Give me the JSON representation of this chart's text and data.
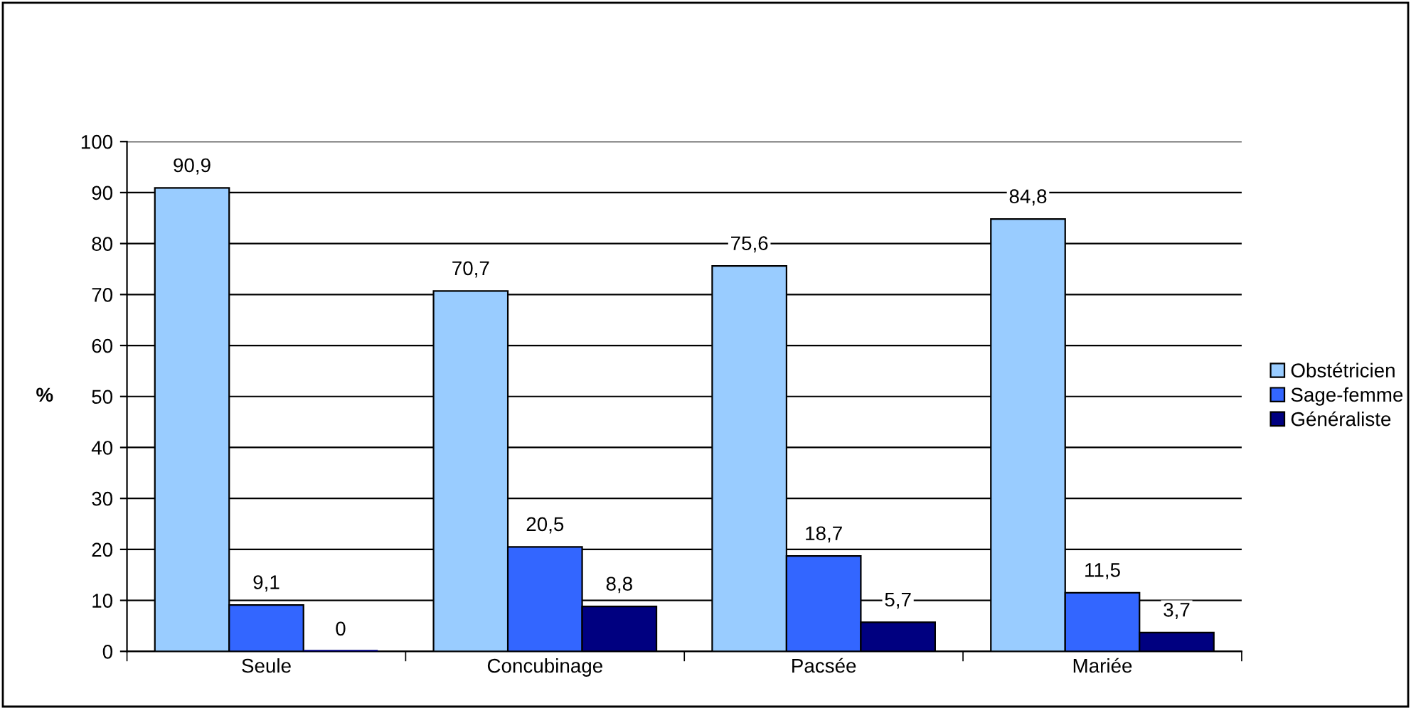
{
  "chart_data": {
    "type": "bar",
    "ylabel": "%",
    "categories": [
      "Seule",
      "Concubinage",
      "Pacsée",
      "Mariée"
    ],
    "series": [
      {
        "name": "Obstétricien",
        "color": "#99ccff",
        "values": [
          90.9,
          70.7,
          75.6,
          84.8
        ],
        "value_labels": [
          "90,9",
          "70,7",
          "75,6",
          "84,8"
        ]
      },
      {
        "name": "Sage-femme",
        "color": "#3366ff",
        "values": [
          9.1,
          20.5,
          18.7,
          11.5
        ],
        "value_labels": [
          "9,1",
          "20,5",
          "18,7",
          "11,5"
        ]
      },
      {
        "name": "Généraliste",
        "color": "#000080",
        "values": [
          0,
          8.8,
          5.7,
          3.7
        ],
        "value_labels": [
          "0",
          "8,8",
          "5,7",
          "3,7"
        ]
      }
    ],
    "ylim": [
      0,
      100
    ],
    "yticks": [
      0,
      10,
      20,
      30,
      40,
      50,
      60,
      70,
      80,
      90,
      100
    ],
    "grid": "y",
    "legend": "right"
  }
}
